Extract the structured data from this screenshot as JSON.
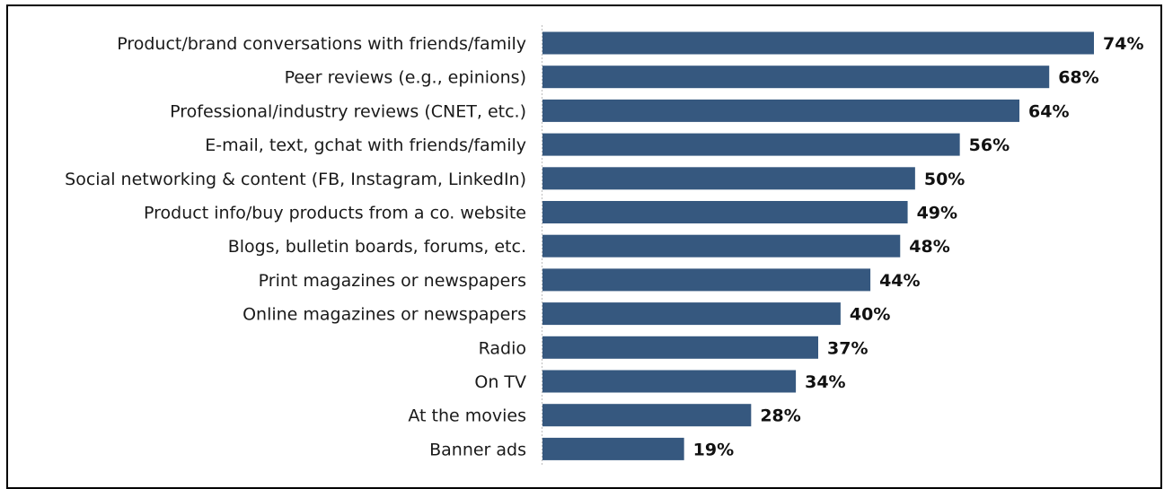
{
  "chart_data": {
    "type": "bar",
    "orientation": "horizontal",
    "categories": [
      "Product/brand conversations with friends/family",
      "Peer reviews (e.g., epinions)",
      "Professional/industry reviews (CNET, etc.)",
      "E-mail, text, gchat with friends/family",
      "Social networking & content (FB, Instagram, LinkedIn)",
      "Product info/buy products from a co. website",
      "Blogs, bulletin boards, forums, etc.",
      "Print magazines or newspapers",
      "Online magazines or newspapers",
      "Radio",
      "On TV",
      "At the movies",
      "Banner ads"
    ],
    "values": [
      74,
      68,
      64,
      56,
      50,
      49,
      48,
      44,
      40,
      37,
      34,
      28,
      19
    ],
    "value_labels": [
      "74%",
      "68%",
      "64%",
      "56%",
      "50%",
      "49%",
      "48%",
      "44%",
      "40%",
      "37%",
      "34%",
      "28%",
      "19%"
    ],
    "xlim": [
      0,
      74
    ],
    "bar_color": "#36587f",
    "grid": false,
    "legend": "none"
  }
}
